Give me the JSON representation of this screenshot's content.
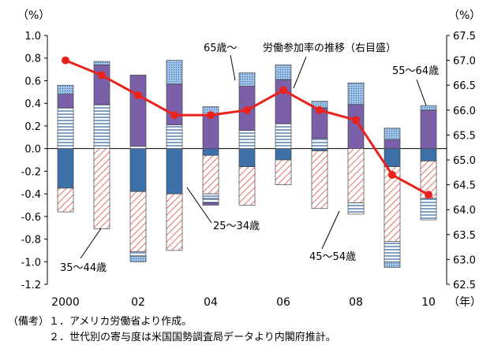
{
  "chart_data": {
    "type": "bar",
    "stacked": true,
    "categories": [
      "2000",
      "01",
      "02",
      "03",
      "04",
      "05",
      "06",
      "07",
      "08",
      "09",
      "10"
    ],
    "x_tick_labels": [
      "2000",
      "",
      "02",
      "",
      "04",
      "",
      "06",
      "",
      "08",
      "",
      "10"
    ],
    "x_unit": "（年）",
    "y_left": {
      "unit": "（%）",
      "range": [
        -1.2,
        1.0
      ],
      "ticks": [
        "1.0",
        "0.8",
        "0.6",
        "0.4",
        "0.2",
        "0.0",
        "-0.2",
        "-0.4",
        "-0.6",
        "-0.8",
        "-1.0",
        "-1.2"
      ]
    },
    "y_right": {
      "unit": "（%）",
      "range": [
        62.5,
        67.5
      ],
      "ticks": [
        "67.5",
        "67.0",
        "66.5",
        "66.0",
        "65.5",
        "65.0",
        "64.5",
        "64.0",
        "63.5",
        "63.0",
        "62.5"
      ]
    },
    "series": [
      {
        "name": "25～34歳",
        "pattern": "solid",
        "color": "#3d6fa8",
        "values": [
          -0.35,
          0.0,
          -0.38,
          -0.4,
          -0.06,
          -0.16,
          -0.1,
          -0.02,
          0.0,
          -0.16,
          -0.11
        ]
      },
      {
        "name": "35～44歳",
        "pattern": "diagonal",
        "color": "#e0706a",
        "values": [
          -0.21,
          -0.71,
          -0.53,
          -0.5,
          -0.34,
          -0.34,
          -0.22,
          -0.51,
          -0.48,
          -0.66,
          -0.33
        ]
      },
      {
        "name": "45～54歳",
        "pattern": "horizontal",
        "color": "#3d6fa8",
        "values": [
          0.36,
          0.39,
          0.02,
          0.21,
          -0.04,
          0.16,
          0.22,
          0.09,
          0.0,
          0.0,
          0.0
        ]
      },
      {
        "name": "55～64歳",
        "pattern": "solid",
        "color": "#7b5fa8",
        "values": [
          0.12,
          0.35,
          0.63,
          0.36,
          0.3,
          0.39,
          0.39,
          0.27,
          0.39,
          0.08,
          0.34
        ]
      },
      {
        "name": "65歳～",
        "pattern": "dotted",
        "color": "#9fc3e6",
        "values": [
          0.08,
          0.03,
          0.0,
          0.21,
          0.07,
          0.12,
          0.13,
          0.06,
          0.19,
          0.1,
          0.04
        ]
      }
    ],
    "extra_negative": {
      "45～54歳": [
        0,
        0,
        -0.04,
        0,
        -0.04,
        0,
        0,
        0,
        -0.1,
        -0.18,
        -0.19
      ],
      "65歳～": [
        0,
        0,
        -0.05,
        0,
        0,
        0,
        0,
        0,
        0,
        -0.05,
        0
      ],
      "55～64歳": [
        0,
        0,
        0,
        0,
        -0.02,
        0,
        0,
        0,
        0,
        0,
        0
      ]
    },
    "line": {
      "name": "労働参加率の推移（右目盛）",
      "axis": "right",
      "color": "#e8231c",
      "values": [
        67.0,
        66.7,
        66.3,
        65.9,
        65.9,
        66.0,
        66.4,
        66.0,
        65.8,
        64.7,
        64.3
      ]
    },
    "annotations": [
      "65歳～",
      "労働参加率の推移（右目盛）",
      "55～64歳",
      "25～34歳",
      "35～44歳",
      "45～54歳"
    ]
  },
  "notes": {
    "title": "（備考）",
    "line1": "１．アメリカ労働省より作成。",
    "line2": "２．世代別の寄与度は米国国勢調査局データより内閣府推計。"
  }
}
